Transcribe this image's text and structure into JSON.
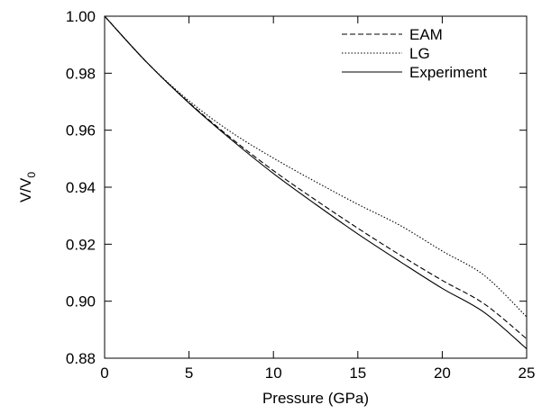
{
  "chart_data": {
    "type": "line",
    "xlabel": "Pressure (GPa)",
    "ylabel": "V/V",
    "ylabel_subscript": "0",
    "xlim": [
      0,
      25
    ],
    "ylim": [
      0.88,
      1.0
    ],
    "xticks": [
      {
        "value": 0,
        "label": "0"
      },
      {
        "value": 5,
        "label": "5"
      },
      {
        "value": 10,
        "label": "10"
      },
      {
        "value": 15,
        "label": "15"
      },
      {
        "value": 20,
        "label": "20"
      },
      {
        "value": 25,
        "label": "25"
      }
    ],
    "yticks": [
      {
        "value": 0.88,
        "label": "0.88"
      },
      {
        "value": 0.9,
        "label": "0.90"
      },
      {
        "value": 0.92,
        "label": "0.92"
      },
      {
        "value": 0.94,
        "label": "0.94"
      },
      {
        "value": 0.96,
        "label": "0.96"
      },
      {
        "value": 0.98,
        "label": "0.98"
      },
      {
        "value": 1.0,
        "label": "1.00"
      }
    ],
    "grid": false,
    "legend_position": "top-right",
    "x": [
      0,
      2.5,
      5,
      7.5,
      10,
      12.5,
      15,
      17.5,
      20,
      22.5,
      25
    ],
    "series": [
      {
        "name": "EAM",
        "style": "dashed",
        "color": "#000000",
        "values": [
          1.0,
          0.9838,
          0.9697,
          0.9572,
          0.9458,
          0.9355,
          0.9256,
          0.9162,
          0.9073,
          0.899,
          0.8868
        ]
      },
      {
        "name": "LG",
        "style": "dotted",
        "color": "#000000",
        "values": [
          1.0,
          0.9838,
          0.9703,
          0.9593,
          0.9502,
          0.9419,
          0.934,
          0.9266,
          0.9176,
          0.909,
          0.8945
        ]
      },
      {
        "name": "Experiment",
        "style": "solid",
        "color": "#000000",
        "values": [
          1.0,
          0.9838,
          0.9695,
          0.9567,
          0.9448,
          0.934,
          0.9236,
          0.9139,
          0.9045,
          0.896,
          0.8833
        ]
      }
    ]
  }
}
